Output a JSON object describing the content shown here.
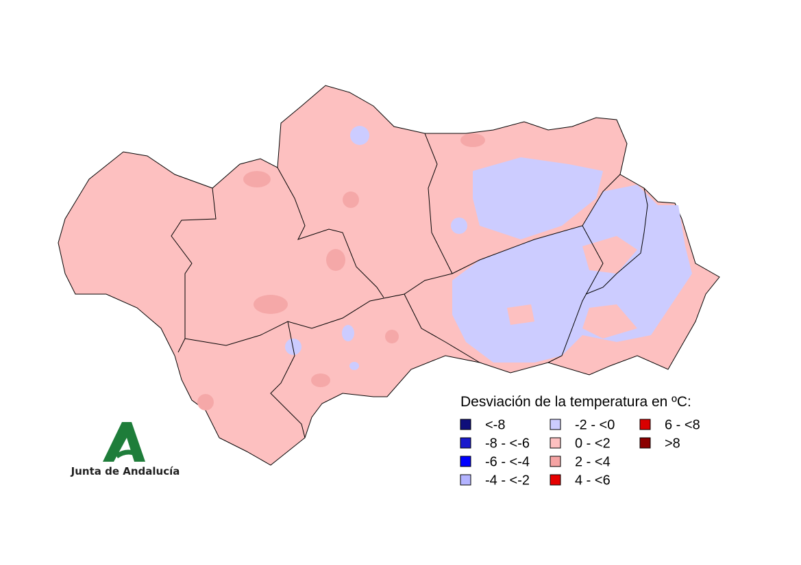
{
  "legend": {
    "title": "Desviación de la temperatura en ºC:",
    "items": [
      {
        "label": "<-8",
        "color": "#0f0f7a"
      },
      {
        "label": "-8 - <-6",
        "color": "#1a1acc"
      },
      {
        "label": "-6 - <-4",
        "color": "#0000ff"
      },
      {
        "label": "-4 - <-2",
        "color": "#b3b3ff"
      },
      {
        "label": "-2 - <0",
        "color": "#ccccff"
      },
      {
        "label": "0 - <2",
        "color": "#fdc0c0"
      },
      {
        "label": "2 - <4",
        "color": "#f5a3a3"
      },
      {
        "label": "4 - <6",
        "color": "#e60000"
      },
      {
        "label": "6 - <8",
        "color": "#d90000"
      },
      {
        "label": ">8",
        "color": "#8b0000"
      }
    ]
  },
  "logo": {
    "text": "Junta de Andalucía"
  }
}
